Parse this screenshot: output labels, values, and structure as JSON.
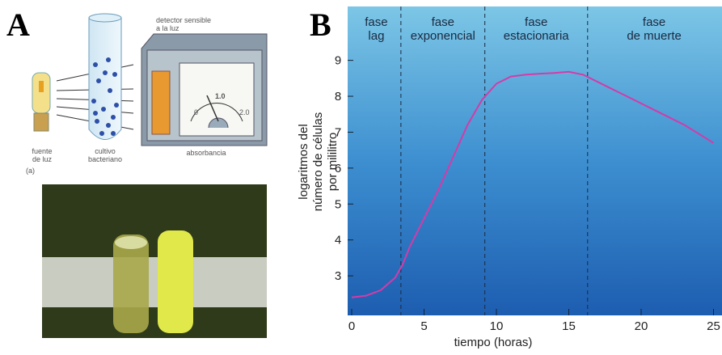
{
  "panel_a": {
    "label": "A",
    "diagram": {
      "detector": [
        "detector sensible",
        "a la luz"
      ],
      "light_source": [
        "fuente",
        "de luz"
      ],
      "culture": [
        "cultivo",
        "bacteriano"
      ],
      "meter": "absorbancia",
      "scale": [
        "0",
        "1.0",
        "2.0"
      ],
      "tag": "(a)"
    }
  },
  "chart_data": {
    "type": "line",
    "panel_label": "B",
    "xlabel": "tiempo (horas)",
    "ylabel": [
      "logaritmos del",
      "número de células",
      "por mililitro"
    ],
    "phases": [
      [
        "fase",
        "lag"
      ],
      [
        "fase",
        "exponencial"
      ],
      [
        "fase",
        "estacionaria"
      ],
      [
        "fase",
        "de muerte"
      ]
    ],
    "phase_boundaries": [
      3.4,
      9.2,
      16.3
    ],
    "x": [
      0,
      1,
      2,
      3,
      3.5,
      4,
      5,
      6,
      7,
      8,
      9,
      10,
      11,
      12,
      13,
      14,
      15,
      16,
      17,
      18,
      19,
      20,
      21,
      22,
      23,
      24,
      25
    ],
    "values": [
      2.4,
      2.45,
      2.6,
      2.95,
      3.3,
      3.8,
      4.6,
      5.4,
      6.3,
      7.2,
      7.9,
      8.35,
      8.55,
      8.6,
      8.63,
      8.65,
      8.68,
      8.6,
      8.4,
      8.2,
      8.0,
      7.8,
      7.6,
      7.4,
      7.2,
      6.95,
      6.7
    ],
    "color": "#d63aa8",
    "xlim": [
      0,
      25.5
    ],
    "ylim": [
      1.9,
      10.5
    ],
    "xticks": [
      0,
      5,
      10,
      15,
      20,
      25
    ],
    "yticks": [
      3,
      4,
      5,
      6,
      7,
      8,
      9
    ]
  }
}
